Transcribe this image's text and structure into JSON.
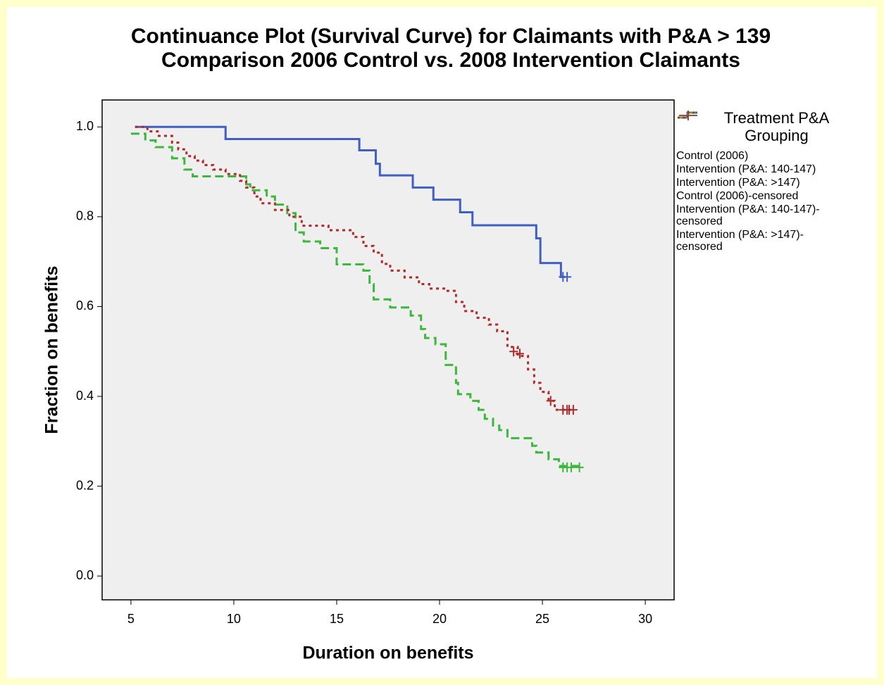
{
  "chart_data": {
    "type": "step",
    "title": "Continuance Plot (Survival Curve) for Claimants with P&A > 139",
    "subtitle": "Comparison 2006 Control vs. 2008 Intervention Claimants",
    "x_label": "Duration on benefits",
    "y_label": "Fraction on benefits",
    "legend_title": [
      "Treatment P&A",
      "Grouping"
    ],
    "legend_position": "right",
    "xlim": [
      3.6,
      31.4
    ],
    "ylim": [
      -0.053,
      1.06
    ],
    "xticks": [
      5,
      10,
      15,
      20,
      25,
      30
    ],
    "yticks": [
      {
        "value": 0,
        "label": "0.0"
      },
      0.2,
      0.4,
      0.6,
      0.8,
      {
        "value": 1,
        "label": "1.0"
      }
    ],
    "series": [
      {
        "name": "Control (2006)",
        "color": "#3f5fc4",
        "dash": "solid",
        "kind": "step",
        "x": [
          5.2,
          9.6,
          16.1,
          16.9,
          17.1,
          18.7,
          19.7,
          21.0,
          21.6,
          24.7,
          24.9,
          25.9,
          26.1
        ],
        "values": [
          1.0,
          0.973,
          0.948,
          0.918,
          0.892,
          0.865,
          0.838,
          0.81,
          0.781,
          0.752,
          0.697,
          0.666,
          0.666
        ]
      },
      {
        "name": "Intervention (P&A: 140-147)",
        "color": "#3cb83c",
        "dash": "dashed",
        "kind": "step",
        "x": [
          5.0,
          5.7,
          6.2,
          7.0,
          7.6,
          8.0,
          10.6,
          10.8,
          11.6,
          12.0,
          12.6,
          13.0,
          13.4,
          14.2,
          15.0,
          16.3,
          16.6,
          16.8,
          17.6,
          18.6,
          19.1,
          19.3,
          19.8,
          20.3,
          20.8,
          20.9,
          21.5,
          21.9,
          22.2,
          22.6,
          22.9,
          23.3,
          24.5,
          24.7,
          25.3,
          25.8,
          26.8
        ],
        "values": [
          0.985,
          0.97,
          0.955,
          0.93,
          0.905,
          0.89,
          0.872,
          0.859,
          0.845,
          0.827,
          0.808,
          0.765,
          0.745,
          0.73,
          0.694,
          0.68,
          0.65,
          0.616,
          0.598,
          0.58,
          0.55,
          0.53,
          0.516,
          0.47,
          0.43,
          0.405,
          0.39,
          0.37,
          0.35,
          0.335,
          0.325,
          0.307,
          0.29,
          0.275,
          0.26,
          0.245,
          0.245
        ]
      },
      {
        "name": "Intervention (P&A: >147)",
        "color": "#b02a2a",
        "dash": "dotted",
        "kind": "step",
        "x": [
          5.2,
          5.8,
          6.3,
          7.0,
          7.3,
          7.7,
          8.1,
          8.5,
          9.0,
          9.6,
          10.3,
          10.6,
          11.0,
          11.3,
          12.0,
          12.7,
          13.3,
          14.6,
          15.8,
          16.3,
          16.8,
          17.2,
          17.6,
          18.3,
          19.0,
          19.5,
          20.3,
          20.8,
          21.2,
          21.8,
          22.4,
          22.8,
          23.3,
          23.8,
          24.3,
          24.6,
          24.9,
          25.3,
          25.6,
          26.5
        ],
        "values": [
          1.0,
          0.99,
          0.98,
          0.965,
          0.95,
          0.935,
          0.925,
          0.915,
          0.905,
          0.895,
          0.88,
          0.865,
          0.845,
          0.83,
          0.815,
          0.8,
          0.78,
          0.77,
          0.755,
          0.735,
          0.72,
          0.695,
          0.68,
          0.665,
          0.65,
          0.64,
          0.635,
          0.61,
          0.59,
          0.575,
          0.56,
          0.545,
          0.51,
          0.49,
          0.46,
          0.43,
          0.41,
          0.39,
          0.37,
          0.37
        ]
      },
      {
        "name": "Control (2006)-censored",
        "color": "#3f5fc4",
        "kind": "censored",
        "x": [
          26.0,
          26.2
        ],
        "values": [
          0.666,
          0.666
        ]
      },
      {
        "name": "Intervention (P&A: 140-147)-censored",
        "color": "#3cb83c",
        "kind": "censored",
        "x": [
          26.0,
          26.2,
          26.4,
          26.8
        ],
        "values": [
          0.242,
          0.242,
          0.242,
          0.242
        ]
      },
      {
        "name": "Intervention (P&A: >147)-censored",
        "color": "#b02a2a",
        "kind": "censored",
        "x": [
          23.6,
          23.9,
          25.4,
          26.0,
          26.2,
          26.3,
          26.5
        ],
        "values": [
          0.5,
          0.495,
          0.39,
          0.37,
          0.37,
          0.37,
          0.37
        ]
      }
    ]
  }
}
